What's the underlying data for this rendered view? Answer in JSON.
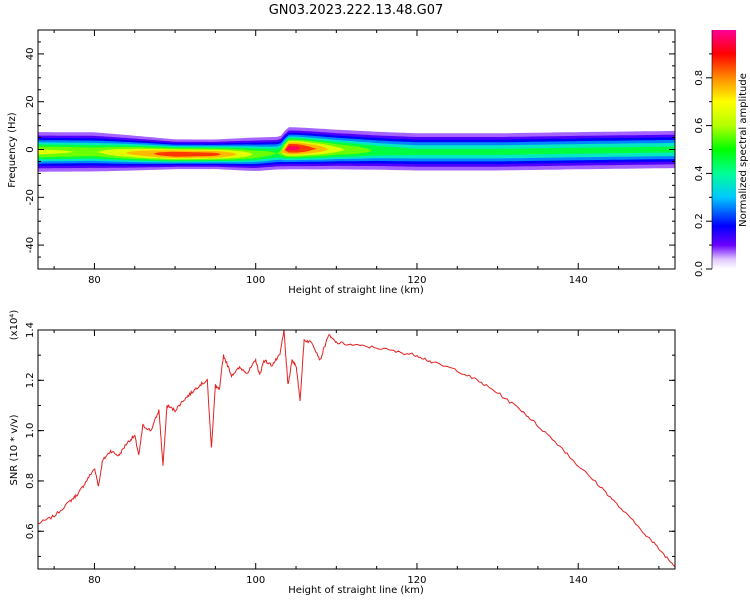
{
  "title": "GN03.2023.222.13.48.G07",
  "chart_data": [
    {
      "type": "heatmap",
      "xlabel": "Height of straight line (km)",
      "ylabel": "Frequency (Hz)",
      "xlim": [
        73,
        152
      ],
      "ylim": [
        -50,
        50
      ],
      "xticks": [
        80,
        100,
        120,
        140
      ],
      "yticks": [
        40,
        20,
        0,
        -20,
        -40
      ],
      "colorbar": {
        "label": "Normalized spectral amplitude",
        "range": [
          0,
          1
        ],
        "ticks": [
          "0.0",
          "0.2",
          "0.4",
          "0.6",
          "0.8"
        ]
      },
      "ridge": {
        "x": [
          73,
          80,
          85,
          90,
          95,
          100,
          103,
          104,
          105,
          110,
          115,
          120,
          130,
          140,
          152
        ],
        "y": [
          -1,
          -1,
          -1.5,
          -2,
          -2,
          -2,
          -1.5,
          0.5,
          0.5,
          0,
          -0.5,
          -1,
          -1,
          -0.5,
          0
        ],
        "peak_amplitude": [
          0.65,
          0.6,
          0.75,
          0.9,
          0.85,
          0.6,
          0.5,
          0.95,
          0.95,
          0.65,
          0.5,
          0.45,
          0.45,
          0.45,
          0.45
        ],
        "halfwidth_hz": [
          3.5,
          3.5,
          3,
          2.5,
          2.5,
          3,
          3,
          3.5,
          3.5,
          3.5,
          3.5,
          3.5,
          3.5,
          3.5,
          3.5
        ]
      }
    },
    {
      "type": "line",
      "xlabel": "Height of straight line (km)",
      "ylabel": "SNR (10 * v/v)",
      "multiplier": "(x10⁴)",
      "xlim": [
        73,
        152
      ],
      "ylim": [
        0.45,
        1.4
      ],
      "xticks": [
        80,
        100,
        120,
        140
      ],
      "yticks": [
        "0.6",
        "0.8",
        "1.0",
        "1.2",
        "1.4"
      ],
      "series": [
        {
          "color": "#e32222",
          "x": [
            73,
            75,
            77,
            78,
            79,
            80,
            80.5,
            81,
            82,
            83,
            84,
            85,
            85.5,
            86,
            87,
            88,
            88.5,
            89,
            90,
            91,
            92,
            93,
            94,
            94.5,
            95,
            95.5,
            96,
            97,
            98,
            99,
            100,
            100.5,
            101,
            102,
            103,
            103.5,
            104,
            104.5,
            105,
            105.5,
            106,
            107,
            108,
            109,
            110,
            112,
            115,
            118,
            120,
            122,
            125,
            128,
            130,
            133,
            135,
            138,
            140,
            143,
            145,
            148,
            150,
            152
          ],
          "y": [
            0.63,
            0.66,
            0.72,
            0.75,
            0.8,
            0.85,
            0.78,
            0.88,
            0.92,
            0.9,
            0.95,
            0.98,
            0.9,
            1.02,
            1.0,
            1.08,
            0.86,
            1.1,
            1.08,
            1.12,
            1.15,
            1.18,
            1.2,
            0.93,
            1.18,
            1.16,
            1.3,
            1.22,
            1.25,
            1.23,
            1.28,
            1.22,
            1.28,
            1.26,
            1.3,
            1.4,
            1.18,
            1.28,
            1.26,
            1.12,
            1.36,
            1.35,
            1.28,
            1.38,
            1.35,
            1.34,
            1.33,
            1.31,
            1.3,
            1.27,
            1.24,
            1.19,
            1.15,
            1.08,
            1.02,
            0.93,
            0.86,
            0.77,
            0.7,
            0.6,
            0.53,
            0.46
          ]
        }
      ]
    }
  ]
}
